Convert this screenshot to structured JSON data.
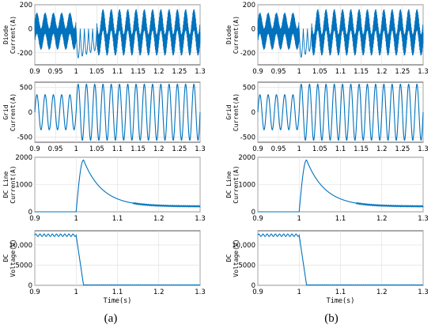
{
  "figure": {
    "panel_labels": [
      "(a)",
      "(b)"
    ],
    "line_color": "#0072BD"
  },
  "chart_data": [
    {
      "id": "a-diode",
      "type": "line",
      "panel": "a",
      "row": 0,
      "ylabel": [
        "Diode",
        "Current(A)"
      ],
      "xlabel": "",
      "xlim": [
        0.9,
        1.3
      ],
      "ylim": [
        -300,
        200
      ],
      "xticks": [
        "0.9",
        "0.95",
        "1",
        "1.05",
        "1.1",
        "1.15",
        "1.2",
        "1.25",
        "1.3"
      ],
      "yticks": [
        "200",
        "0",
        "-200"
      ],
      "ytick_values": [
        200,
        0,
        -200
      ],
      "grid": true,
      "series": [
        {
          "kind": "diode",
          "freq": 50,
          "pre_amp": 110,
          "post_amp": 150,
          "dip_depth": -250,
          "fault_time": 1.0,
          "recovery_time": 1.05
        }
      ]
    },
    {
      "id": "a-grid",
      "type": "line",
      "panel": "a",
      "row": 1,
      "ylabel": [
        "Grid",
        "Current(A)"
      ],
      "xlabel": "",
      "xlim": [
        0.9,
        1.3
      ],
      "ylim": [
        -600,
        600
      ],
      "xticks": [
        "0.9",
        "0.95",
        "1",
        "1.05",
        "1.1",
        "1.15",
        "1.2",
        "1.25",
        "1.3"
      ],
      "yticks": [
        "500",
        "0",
        "-500"
      ],
      "ytick_values": [
        500,
        0,
        -500
      ],
      "grid": true,
      "series": [
        {
          "kind": "sine",
          "freq": 50,
          "pre_amp": 350,
          "post_amp": 560,
          "fault_time": 1.0
        }
      ]
    },
    {
      "id": "a-dcline",
      "type": "line",
      "panel": "a",
      "row": 2,
      "ylabel": [
        "DC Line",
        "Current(A)"
      ],
      "xlabel": "",
      "xlim": [
        0.9,
        1.3
      ],
      "ylim": [
        0,
        2000
      ],
      "xticks": [
        "0.9",
        "1",
        "1.1",
        "1.2",
        "1.3"
      ],
      "yticks": [
        "2000",
        "1000",
        "0"
      ],
      "ytick_values": [
        2000,
        1000,
        0
      ],
      "grid": true,
      "series": [
        {
          "kind": "spike",
          "fault_time": 1.0,
          "peak_time": 1.018,
          "peak": 1900,
          "settle": 200,
          "decay_tau": 0.045
        }
      ]
    },
    {
      "id": "a-dcv",
      "type": "line",
      "panel": "a",
      "row": 3,
      "ylabel": [
        "DC",
        "Voltage(V)"
      ],
      "xlabel": "Time(s)",
      "xlim": [
        0.9,
        1.3
      ],
      "ylim": [
        0,
        13500
      ],
      "xticks": [
        "0.9",
        "1",
        "1.1",
        "1.2",
        "1.3"
      ],
      "yticks": [
        "10,000",
        "5000",
        "0"
      ],
      "ytick_values": [
        10000,
        5000,
        0
      ],
      "grid": true,
      "series": [
        {
          "kind": "voltage",
          "fault_time": 1.0,
          "collapse_time": 1.018,
          "level": 12400,
          "ripple": 300
        }
      ]
    },
    {
      "id": "b-diode",
      "type": "line",
      "panel": "b",
      "row": 0,
      "ylabel": [
        "Diode",
        "Current(A)"
      ],
      "xlabel": "",
      "xlim": [
        0.9,
        1.3
      ],
      "ylim": [
        -300,
        200
      ],
      "xticks": [
        "0.9",
        "0.95",
        "1",
        "1.05",
        "1.1",
        "1.15",
        "1.2",
        "1.25",
        "1.3"
      ],
      "yticks": [
        "200",
        "0",
        "-200"
      ],
      "ytick_values": [
        200,
        0,
        -200
      ],
      "grid": true,
      "series": [
        {
          "kind": "diode",
          "freq": 50,
          "pre_amp": 110,
          "post_amp": 150,
          "dip_depth": -250,
          "fault_time": 1.0,
          "recovery_time": 1.03
        }
      ]
    },
    {
      "id": "b-grid",
      "type": "line",
      "panel": "b",
      "row": 1,
      "ylabel": [
        "Grid",
        "Current(A)"
      ],
      "xlabel": "",
      "xlim": [
        0.9,
        1.3
      ],
      "ylim": [
        -600,
        600
      ],
      "xticks": [
        "0.9",
        "0.95",
        "1",
        "1.05",
        "1.1",
        "1.15",
        "1.2",
        "1.25",
        "1.3"
      ],
      "yticks": [
        "500",
        "0",
        "-500"
      ],
      "ytick_values": [
        500,
        0,
        -500
      ],
      "grid": true,
      "series": [
        {
          "kind": "sine",
          "freq": 50,
          "pre_amp": 350,
          "post_amp": 560,
          "fault_time": 1.0
        }
      ]
    },
    {
      "id": "b-dcline",
      "type": "line",
      "panel": "b",
      "row": 2,
      "ylabel": [
        "DC Line",
        "Current(A)"
      ],
      "xlabel": "",
      "xlim": [
        0.9,
        1.3
      ],
      "ylim": [
        0,
        2000
      ],
      "xticks": [
        "0.9",
        "1",
        "1.1",
        "1.2",
        "1.3"
      ],
      "yticks": [
        "2000",
        "1000",
        "0"
      ],
      "ytick_values": [
        2000,
        1000,
        0
      ],
      "grid": true,
      "series": [
        {
          "kind": "spike",
          "fault_time": 1.0,
          "peak_time": 1.018,
          "peak": 1900,
          "settle": 200,
          "decay_tau": 0.045
        }
      ]
    },
    {
      "id": "b-dcv",
      "type": "line",
      "panel": "b",
      "row": 3,
      "ylabel": [
        "DC",
        "Voltage(V)"
      ],
      "xlabel": "Time(s)",
      "xlim": [
        0.9,
        1.3
      ],
      "ylim": [
        0,
        13500
      ],
      "xticks": [
        "0.9",
        "1",
        "1.1",
        "1.2",
        "1.3"
      ],
      "yticks": [
        "10,000",
        "5000",
        "0"
      ],
      "ytick_values": [
        10000,
        5000,
        0
      ],
      "grid": true,
      "series": [
        {
          "kind": "voltage",
          "fault_time": 1.0,
          "collapse_time": 1.018,
          "level": 12400,
          "ripple": 300
        }
      ]
    }
  ]
}
